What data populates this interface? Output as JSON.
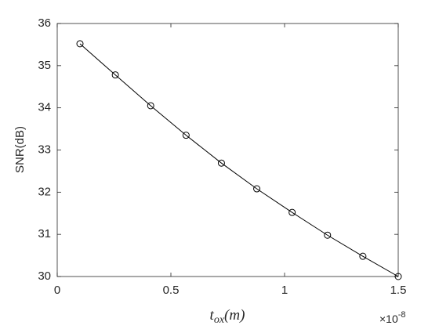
{
  "chart_data": {
    "type": "line",
    "y_label": "SNR(dB)",
    "x_label": {
      "base": "t",
      "sub": "ox",
      "rest": "(m)"
    },
    "x_multiplier": {
      "base": "×10",
      "exp": "-8"
    },
    "x": [
      0.1,
      0.2556,
      0.4111,
      0.5667,
      0.7222,
      0.8778,
      1.0333,
      1.1889,
      1.3444,
      1.5
    ],
    "series": [
      {
        "color": "#000000",
        "marker": "circle",
        "values": [
          35.52,
          34.78,
          34.05,
          33.35,
          32.69,
          32.08,
          31.52,
          30.98,
          30.48,
          30.0
        ]
      }
    ],
    "xlim": [
      0,
      1.5
    ],
    "xticks": [
      0,
      0.5,
      1,
      1.5
    ],
    "ylim": [
      30,
      36
    ],
    "yticks": [
      30,
      31,
      32,
      33,
      34,
      35,
      36
    ],
    "grid": false
  }
}
